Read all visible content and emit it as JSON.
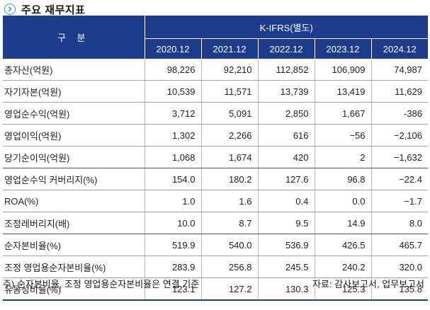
{
  "title": "주요 재무지표",
  "header": {
    "gubun": "구 분",
    "standard": "K-IFRS(별도)",
    "years": [
      "2020.12",
      "2021.12",
      "2022.12",
      "2023.12",
      "2024.12"
    ]
  },
  "rows": [
    {
      "label": "총자산(억원)",
      "values": [
        "98,226",
        "92,210",
        "112,852",
        "106,909",
        "74,987"
      ]
    },
    {
      "label": "자기자본(억원)",
      "values": [
        "10,539",
        "11,571",
        "13,739",
        "13,419",
        "11,629"
      ]
    },
    {
      "label": "영업순수익(억원)",
      "values": [
        "3,712",
        "5,091",
        "2,850",
        "1,667",
        "-386"
      ]
    },
    {
      "label": "영업이익(억원)",
      "values": [
        "1,302",
        "2,266",
        "616",
        "−56",
        "−2,106"
      ]
    },
    {
      "label": "당기순이익(억원)",
      "values": [
        "1,068",
        "1,674",
        "420",
        "2",
        "−1,632"
      ]
    },
    {
      "label": "영업순수익 커버리지(%)",
      "values": [
        "154.0",
        "180.2",
        "127.6",
        "96.8",
        "−22.4"
      ]
    },
    {
      "label": "ROA(%)",
      "values": [
        "1.0",
        "1.6",
        "0.4",
        "0.0",
        "−1.7"
      ]
    },
    {
      "label": "조정레버리지(배)",
      "values": [
        "10.0",
        "8.7",
        "9.5",
        "14.9",
        "8.0"
      ]
    },
    {
      "label": "순자본비율(%)",
      "values": [
        "519.9",
        "540.0",
        "536.9",
        "426.5",
        "465.7"
      ]
    },
    {
      "label": "조정 영업용순자본비율(%)",
      "values": [
        "283.9",
        "256.8",
        "245.5",
        "240.2",
        "320.0"
      ]
    },
    {
      "label": "유동성비율(%)",
      "values": [
        "123.1",
        "127.2",
        "130.3",
        "125.3",
        "135.8"
      ]
    }
  ],
  "footnote_left": "주) 순자본비율, 조정 영업용순자본비율은 연결 기준",
  "footnote_right": "자료: 감사보고서, 업무보고서"
}
